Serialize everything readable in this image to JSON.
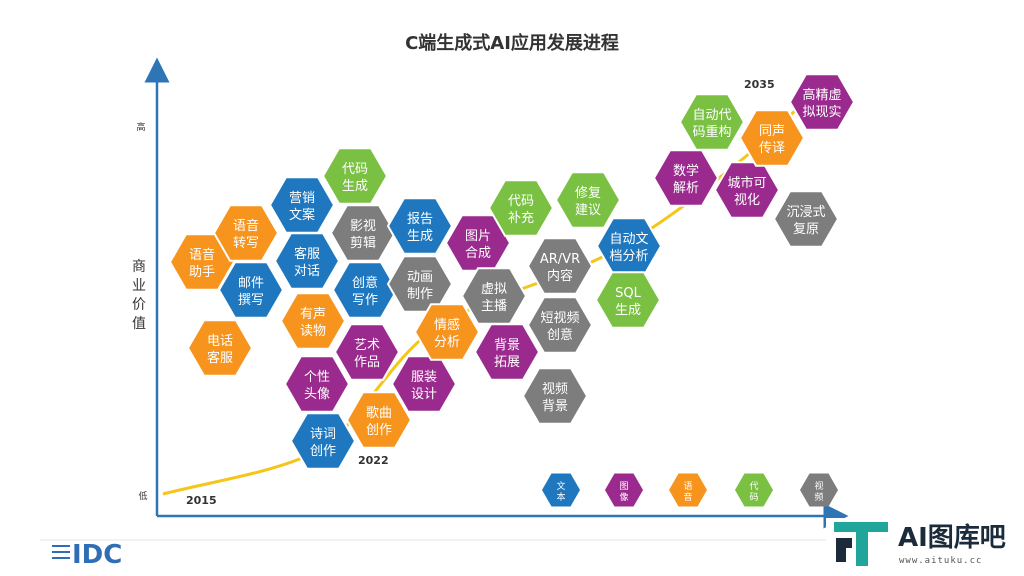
{
  "chart_data": {
    "type": "scatter",
    "title": "C端生成式AI应用发展进程",
    "y_axis": {
      "label_chars": [
        "商",
        "业",
        "价",
        "值"
      ],
      "high": "高",
      "low": "低"
    },
    "timeline_years": [
      "2015",
      "2022",
      "2035"
    ],
    "categories": [
      {
        "key": "text",
        "name": "文本",
        "color": "#1f78bf"
      },
      {
        "key": "image",
        "name": "图像",
        "color": "#9b2a8e"
      },
      {
        "key": "audio",
        "name": "语音",
        "color": "#f7941d"
      },
      {
        "key": "code",
        "name": "代码",
        "color": "#7ac143"
      },
      {
        "key": "video",
        "name": "视频",
        "color": "#7d7d7d"
      }
    ],
    "legend": [
      {
        "lines": [
          "文",
          "本"
        ],
        "category": "text"
      },
      {
        "lines": [
          "图",
          "像"
        ],
        "category": "image"
      },
      {
        "lines": [
          "语",
          "音"
        ],
        "category": "audio"
      },
      {
        "lines": [
          "代",
          "码"
        ],
        "category": "code"
      },
      {
        "lines": [
          "视",
          "频"
        ],
        "category": "video"
      }
    ],
    "items": [
      {
        "lines": [
          "语音",
          "助手"
        ],
        "category": "audio"
      },
      {
        "lines": [
          "电话",
          "客服"
        ],
        "category": "audio"
      },
      {
        "lines": [
          "语音",
          "转写"
        ],
        "category": "audio"
      },
      {
        "lines": [
          "邮件",
          "撰写"
        ],
        "category": "text"
      },
      {
        "lines": [
          "营销",
          "文案"
        ],
        "category": "text"
      },
      {
        "lines": [
          "客服",
          "对话"
        ],
        "category": "text"
      },
      {
        "lines": [
          "有声",
          "读物"
        ],
        "category": "audio"
      },
      {
        "lines": [
          "个性",
          "头像"
        ],
        "category": "image"
      },
      {
        "lines": [
          "代码",
          "生成"
        ],
        "category": "code"
      },
      {
        "lines": [
          "影视",
          "剪辑"
        ],
        "category": "video"
      },
      {
        "lines": [
          "创意",
          "写作"
        ],
        "category": "text"
      },
      {
        "lines": [
          "艺术",
          "作品"
        ],
        "category": "image"
      },
      {
        "lines": [
          "诗词",
          "创作"
        ],
        "category": "text"
      },
      {
        "lines": [
          "歌曲",
          "创作"
        ],
        "category": "audio"
      },
      {
        "lines": [
          "报告",
          "生成"
        ],
        "category": "text"
      },
      {
        "lines": [
          "动画",
          "制作"
        ],
        "category": "video"
      },
      {
        "lines": [
          "服装",
          "设计"
        ],
        "category": "image"
      },
      {
        "lines": [
          "情感",
          "分析"
        ],
        "category": "audio"
      },
      {
        "lines": [
          "图片",
          "合成"
        ],
        "category": "image"
      },
      {
        "lines": [
          "虚拟",
          "主播"
        ],
        "category": "video"
      },
      {
        "lines": [
          "背景",
          "拓展"
        ],
        "category": "image"
      },
      {
        "lines": [
          "代码",
          "补充"
        ],
        "category": "code"
      },
      {
        "lines": [
          "AR/VR",
          "内容"
        ],
        "category": "video"
      },
      {
        "lines": [
          "短视频",
          "创意"
        ],
        "category": "video"
      },
      {
        "lines": [
          "视频",
          "背景"
        ],
        "category": "video"
      },
      {
        "lines": [
          "修复",
          "建议"
        ],
        "category": "code"
      },
      {
        "lines": [
          "自动文",
          "档分析"
        ],
        "category": "text"
      },
      {
        "lines": [
          "SQL",
          "生成"
        ],
        "category": "code"
      },
      {
        "lines": [
          "数学",
          "解析"
        ],
        "category": "image"
      },
      {
        "lines": [
          "自动代",
          "码重构"
        ],
        "category": "code"
      },
      {
        "lines": [
          "城市可",
          "视化"
        ],
        "category": "image"
      },
      {
        "lines": [
          "同声",
          "传译"
        ],
        "category": "audio"
      },
      {
        "lines": [
          "沉浸式",
          "复原"
        ],
        "category": "video"
      },
      {
        "lines": [
          "高精虚",
          "拟现实"
        ],
        "category": "image"
      }
    ]
  },
  "footer": {
    "logo_text": "IDC",
    "brand_name": "AI图库吧",
    "brand_url": "www.aituku.cc"
  }
}
